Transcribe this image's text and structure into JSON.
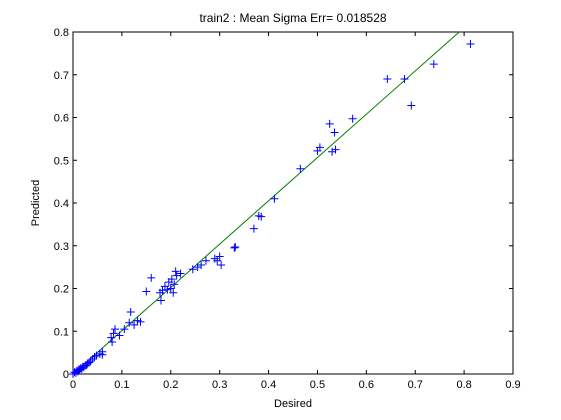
{
  "chart_data": {
    "type": "scatter",
    "title": "train2 :  Mean Sigma Err= 0.018528",
    "xlabel": "Desired",
    "ylabel": "Predicted",
    "xlim": [
      0,
      0.9
    ],
    "ylim": [
      0,
      0.8
    ],
    "xticks": [
      "0",
      "0.1",
      "0.2",
      "0.3",
      "0.4",
      "0.5",
      "0.6",
      "0.7",
      "0.8",
      "0.9"
    ],
    "yticks": [
      "0",
      "0.1",
      "0.2",
      "0.3",
      "0.4",
      "0.5",
      "0.6",
      "0.7",
      "0.8"
    ],
    "grid": false,
    "marker": "+",
    "marker_color": "#0000ff",
    "line_color": "#008000",
    "fit_line": {
      "x": [
        0,
        0.79
      ],
      "y": [
        0,
        0.8
      ]
    },
    "series": [
      {
        "points": [
          [
            0.0,
            0.0
          ],
          [
            0.003,
            0.004
          ],
          [
            0.006,
            0.003
          ],
          [
            0.008,
            0.008
          ],
          [
            0.01,
            0.006
          ],
          [
            0.012,
            0.011
          ],
          [
            0.014,
            0.01
          ],
          [
            0.016,
            0.014
          ],
          [
            0.018,
            0.012
          ],
          [
            0.02,
            0.017
          ],
          [
            0.022,
            0.016
          ],
          [
            0.025,
            0.02
          ],
          [
            0.028,
            0.021
          ],
          [
            0.03,
            0.025
          ],
          [
            0.033,
            0.027
          ],
          [
            0.036,
            0.03
          ],
          [
            0.04,
            0.035
          ],
          [
            0.044,
            0.04
          ],
          [
            0.048,
            0.043
          ],
          [
            0.055,
            0.047
          ],
          [
            0.06,
            0.052
          ],
          [
            0.06,
            0.045
          ],
          [
            0.078,
            0.085
          ],
          [
            0.08,
            0.075
          ],
          [
            0.083,
            0.095
          ],
          [
            0.086,
            0.105
          ],
          [
            0.095,
            0.09
          ],
          [
            0.105,
            0.105
          ],
          [
            0.115,
            0.12
          ],
          [
            0.118,
            0.145
          ],
          [
            0.125,
            0.115
          ],
          [
            0.132,
            0.125
          ],
          [
            0.138,
            0.122
          ],
          [
            0.15,
            0.193
          ],
          [
            0.16,
            0.225
          ],
          [
            0.178,
            0.19
          ],
          [
            0.18,
            0.172
          ],
          [
            0.183,
            0.196
          ],
          [
            0.188,
            0.205
          ],
          [
            0.193,
            0.197
          ],
          [
            0.196,
            0.215
          ],
          [
            0.2,
            0.2
          ],
          [
            0.202,
            0.222
          ],
          [
            0.205,
            0.19
          ],
          [
            0.207,
            0.21
          ],
          [
            0.21,
            0.24
          ],
          [
            0.212,
            0.23
          ],
          [
            0.22,
            0.235
          ],
          [
            0.245,
            0.245
          ],
          [
            0.255,
            0.25
          ],
          [
            0.262,
            0.255
          ],
          [
            0.272,
            0.265
          ],
          [
            0.29,
            0.27
          ],
          [
            0.295,
            0.265
          ],
          [
            0.3,
            0.275
          ],
          [
            0.303,
            0.255
          ],
          [
            0.33,
            0.295
          ],
          [
            0.332,
            0.297
          ],
          [
            0.37,
            0.34
          ],
          [
            0.38,
            0.37
          ],
          [
            0.385,
            0.368
          ],
          [
            0.412,
            0.41
          ],
          [
            0.465,
            0.48
          ],
          [
            0.5,
            0.522
          ],
          [
            0.505,
            0.53
          ],
          [
            0.525,
            0.585
          ],
          [
            0.53,
            0.52
          ],
          [
            0.535,
            0.565
          ],
          [
            0.537,
            0.525
          ],
          [
            0.572,
            0.597
          ],
          [
            0.643,
            0.69
          ],
          [
            0.678,
            0.69
          ],
          [
            0.692,
            0.628
          ],
          [
            0.738,
            0.725
          ],
          [
            0.813,
            0.772
          ]
        ]
      }
    ]
  }
}
